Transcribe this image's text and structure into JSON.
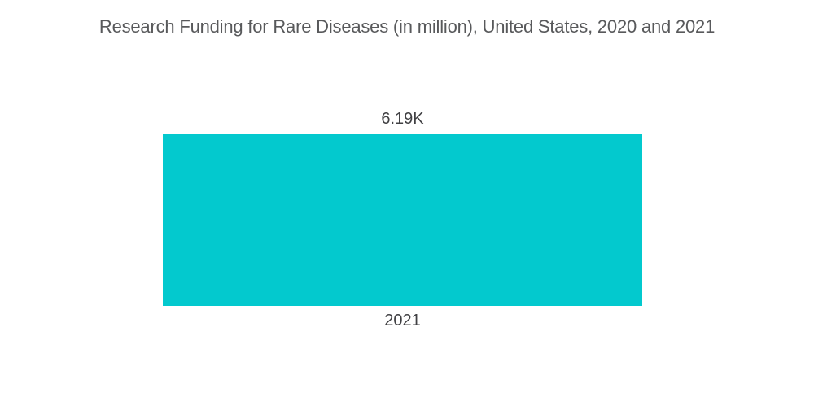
{
  "page": {
    "background_color": "#ffffff"
  },
  "chart_data": {
    "type": "bar",
    "title": "Research Funding for Rare Diseases (in million), United States, 2020 and 2021",
    "orientation": "vertical",
    "categories": [
      "2021"
    ],
    "values": [
      6190
    ],
    "value_labels": [
      "6.19K"
    ],
    "unit": "million",
    "region": "United States",
    "grid": false,
    "axes_visible": false,
    "legend": "none",
    "bar_color": "#03c9ce",
    "title_color": "#58595b",
    "label_color": "#404043"
  }
}
